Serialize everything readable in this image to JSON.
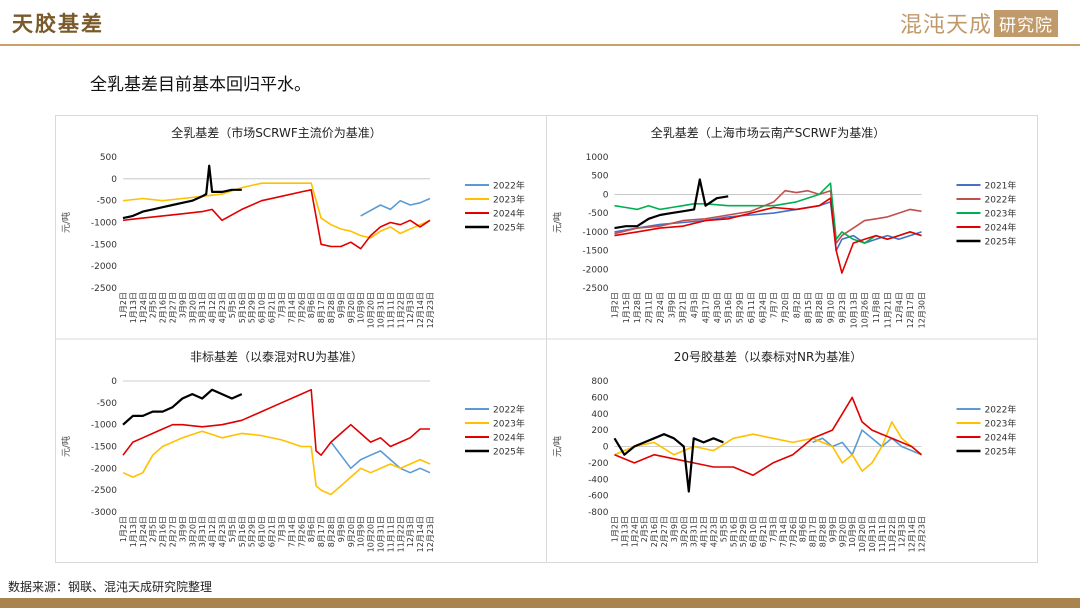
{
  "header": {
    "title": "天胶基差",
    "logo_text": "混沌天成",
    "logo_box": "研究院"
  },
  "subtitle": "全乳基差目前基本回归平水。",
  "source": "数据来源：钢联、混沌天成研究院整理",
  "colors": {
    "2021年": "#4472c4",
    "2022年": "#5b9bd5",
    "2023年": "#ffc000",
    "2024年": "#e00000",
    "2025年": "#000000",
    "p2_2022年": "#c0504d",
    "p2_2023年": "#00b050",
    "accent": "#c8a26a"
  },
  "chart_data": [
    {
      "type": "line",
      "title": "全乳基差（市场SCRWF主流价为基准）",
      "ylabel": "元/吨",
      "ylim": [
        -2500,
        500
      ],
      "yticks": [
        500,
        0,
        -500,
        -1000,
        -1500,
        -2000,
        -2500
      ],
      "xticks": [
        "1月2日",
        "1月13日",
        "1月24日",
        "2月5日",
        "2月16日",
        "2月27日",
        "3月9日",
        "3月20日",
        "3月31日",
        "4月12日",
        "4月23日",
        "5月5日",
        "5月16日",
        "5月29日",
        "6月10日",
        "6月21日",
        "7月3日",
        "7月14日",
        "7月26日",
        "8月6日",
        "8月17日",
        "8月28日",
        "9月9日",
        "9月20日",
        "10月9日",
        "10月20日",
        "10月31日",
        "11月11日",
        "11月22日",
        "12月3日",
        "12月14日",
        "12月23日"
      ],
      "series": [
        {
          "name": "2022年",
          "x": [
            24,
            26,
            27,
            28,
            29,
            30,
            31
          ],
          "y": [
            -850,
            -600,
            -700,
            -500,
            -600,
            -550,
            -450
          ]
        },
        {
          "name": "2023年",
          "x": [
            0,
            2,
            4,
            6,
            8,
            10,
            12,
            13,
            14,
            15,
            16,
            17,
            18,
            19,
            20,
            21,
            22,
            23,
            24,
            25,
            26,
            27,
            28,
            29,
            30,
            31
          ],
          "y": [
            -500,
            -450,
            -500,
            -450,
            -400,
            -350,
            -200,
            -150,
            -100,
            -100,
            -100,
            -100,
            -100,
            -100,
            -900,
            -1050,
            -1150,
            -1200,
            -1300,
            -1350,
            -1200,
            -1100,
            -1250,
            -1150,
            -1050,
            -950
          ]
        },
        {
          "name": "2024年",
          "x": [
            0,
            2,
            4,
            6,
            8,
            9,
            10,
            12,
            14,
            16,
            18,
            19,
            20,
            21,
            22,
            23,
            24,
            25,
            26,
            27,
            28,
            29,
            30,
            31
          ],
          "y": [
            -950,
            -900,
            -850,
            -800,
            -750,
            -700,
            -950,
            -700,
            -500,
            -400,
            -300,
            -250,
            -1500,
            -1550,
            -1550,
            -1450,
            -1600,
            -1300,
            -1100,
            -1000,
            -1050,
            -950,
            -1100,
            -950
          ]
        },
        {
          "name": "2025年",
          "x": [
            0,
            1,
            2,
            3,
            4,
            5,
            6,
            7,
            8,
            8.4,
            8.7,
            9,
            10,
            11,
            12
          ],
          "y": [
            -900,
            -850,
            -750,
            -700,
            -650,
            -600,
            -550,
            -500,
            -400,
            -350,
            300,
            -300,
            -300,
            -250,
            -250
          ]
        }
      ],
      "legend": "right"
    },
    {
      "type": "line",
      "title": "全乳基差（上海市场云南产SCRWF为基准）",
      "ylabel": "元/吨",
      "ylim": [
        -2500,
        1000
      ],
      "yticks": [
        1000,
        500,
        0,
        -500,
        -1000,
        -1500,
        -2000,
        -2500
      ],
      "xticks": [
        "1月2日",
        "1月15日",
        "1月28日",
        "2月11日",
        "2月24日",
        "3月9日",
        "3月21日",
        "4月3日",
        "4月17日",
        "4月30日",
        "5月16日",
        "5月29日",
        "6月11日",
        "6月24日",
        "7月7日",
        "7月20日",
        "8月2日",
        "8月15日",
        "8月28日",
        "9月10日",
        "9月23日",
        "10月13日",
        "10月26日",
        "11月8日",
        "11月21日",
        "12月4日",
        "12月17日",
        "12月30日"
      ],
      "series": [
        {
          "name": "2021年",
          "x": [
            0,
            2,
            4,
            6,
            8,
            10,
            12,
            14,
            16,
            18,
            19,
            19.5,
            20,
            21,
            22,
            23,
            24,
            25,
            26,
            27
          ],
          "y": [
            -1000,
            -900,
            -800,
            -750,
            -700,
            -600,
            -550,
            -500,
            -400,
            -300,
            -200,
            -1500,
            -1200,
            -1100,
            -1300,
            -1200,
            -1100,
            -1200,
            -1100,
            -1000
          ]
        },
        {
          "name": "2022年",
          "x": [
            0,
            2,
            4,
            6,
            8,
            10,
            12,
            14,
            15,
            16,
            17,
            18,
            19,
            19.5,
            20,
            21,
            22,
            23,
            24,
            25,
            26,
            27
          ],
          "y": [
            -1050,
            -900,
            -850,
            -700,
            -650,
            -550,
            -450,
            -200,
            100,
            50,
            100,
            0,
            100,
            -1300,
            -1100,
            -900,
            -700,
            -650,
            -600,
            -500,
            -400,
            -450
          ]
        },
        {
          "name": "2023年",
          "x": [
            0,
            1,
            2,
            3,
            4,
            5,
            6,
            7,
            8,
            10,
            12,
            14,
            16,
            18,
            19,
            19.5,
            20,
            21,
            22,
            23,
            24,
            25,
            26,
            27
          ],
          "y": [
            -300,
            -350,
            -400,
            -300,
            -400,
            -350,
            -300,
            -250,
            -250,
            -300,
            -300,
            -300,
            -200,
            0,
            300,
            -1200,
            -1000,
            -1200,
            -1300,
            -1100,
            -1200,
            -1100,
            -1000,
            -1100
          ]
        },
        {
          "name": "2024年",
          "x": [
            0,
            2,
            4,
            6,
            8,
            10,
            12,
            14,
            16,
            18,
            19,
            19.5,
            20,
            21,
            22,
            23,
            24,
            25,
            26,
            27
          ],
          "y": [
            -1100,
            -1000,
            -900,
            -850,
            -700,
            -650,
            -500,
            -350,
            -400,
            -300,
            -100,
            -1500,
            -2100,
            -1300,
            -1200,
            -1100,
            -1200,
            -1100,
            -1000,
            -1100
          ]
        },
        {
          "name": "2025年",
          "x": [
            0,
            1,
            2,
            3,
            4,
            5,
            6,
            7,
            7.5,
            8,
            9,
            10
          ],
          "y": [
            -900,
            -850,
            -850,
            -650,
            -550,
            -500,
            -450,
            -400,
            400,
            -300,
            -100,
            -50
          ]
        }
      ],
      "legend": "right"
    },
    {
      "type": "line",
      "title": "非标基差（以泰混对RU为基准）",
      "ylabel": "元/吨",
      "ylim": [
        -3000,
        0
      ],
      "yticks": [
        0,
        -500,
        -1000,
        -1500,
        -2000,
        -2500,
        -3000
      ],
      "xticks": [
        "1月2日",
        "1月13日",
        "1月24日",
        "2月5日",
        "2月16日",
        "2月27日",
        "3月9日",
        "3月20日",
        "3月31日",
        "4月12日",
        "4月23日",
        "5月5日",
        "5月16日",
        "5月29日",
        "6月10日",
        "6月21日",
        "7月3日",
        "7月14日",
        "7月26日",
        "8月6日",
        "8月17日",
        "8月28日",
        "9月9日",
        "9月20日",
        "10月9日",
        "10月20日",
        "10月31日",
        "11月11日",
        "11月22日",
        "12月3日",
        "12月14日",
        "12月23日"
      ],
      "series": [
        {
          "name": "2022年",
          "x": [
            21,
            22,
            23,
            24,
            25,
            26,
            27,
            28,
            29,
            30,
            31
          ],
          "y": [
            -1400,
            -1700,
            -2000,
            -1800,
            -1700,
            -1600,
            -1800,
            -2000,
            -2100,
            -2000,
            -2100
          ]
        },
        {
          "name": "2023年",
          "x": [
            0,
            1,
            2,
            3,
            4,
            6,
            8,
            10,
            12,
            14,
            16,
            18,
            19,
            19.5,
            20,
            21,
            22,
            23,
            24,
            25,
            26,
            27,
            28,
            29,
            30,
            31
          ],
          "y": [
            -2100,
            -2200,
            -2100,
            -1700,
            -1500,
            -1300,
            -1150,
            -1300,
            -1200,
            -1250,
            -1350,
            -1500,
            -1500,
            -2400,
            -2500,
            -2600,
            -2400,
            -2200,
            -2000,
            -2100,
            -2000,
            -1900,
            -2000,
            -1900,
            -1800,
            -1900
          ]
        },
        {
          "name": "2024年",
          "x": [
            0,
            1,
            2,
            3,
            4,
            5,
            6,
            8,
            10,
            12,
            14,
            16,
            18,
            19,
            19.5,
            20,
            21,
            22,
            23,
            24,
            25,
            26,
            27,
            28,
            29,
            30,
            31
          ],
          "y": [
            -1700,
            -1400,
            -1300,
            -1200,
            -1100,
            -1000,
            -1000,
            -1050,
            -1000,
            -900,
            -700,
            -500,
            -300,
            -200,
            -1600,
            -1700,
            -1400,
            -1200,
            -1000,
            -1200,
            -1400,
            -1300,
            -1500,
            -1400,
            -1300,
            -1100,
            -1100
          ]
        },
        {
          "name": "2025年",
          "x": [
            0,
            1,
            2,
            3,
            4,
            5,
            6,
            7,
            8,
            9,
            10,
            11,
            12
          ],
          "y": [
            -1000,
            -800,
            -800,
            -700,
            -700,
            -600,
            -400,
            -300,
            -400,
            -200,
            -300,
            -400,
            -300
          ]
        }
      ],
      "legend": "right"
    },
    {
      "type": "line",
      "title": "20号胶基差（以泰标对NR为基准）",
      "ylabel": "元/吨",
      "ylim": [
        -800,
        800
      ],
      "yticks": [
        800,
        600,
        400,
        200,
        0,
        -200,
        -400,
        -600,
        -800
      ],
      "xticks": [
        "1月2日",
        "1月13日",
        "1月24日",
        "2月5日",
        "2月16日",
        "2月27日",
        "3月9日",
        "3月20日",
        "3月31日",
        "4月12日",
        "4月23日",
        "5月5日",
        "5月16日",
        "5月29日",
        "6月10日",
        "6月21日",
        "7月3日",
        "7月14日",
        "7月26日",
        "8月6日",
        "8月17日",
        "8月28日",
        "9月9日",
        "9月20日",
        "10月9日",
        "10月20日",
        "10月31日",
        "11月11日",
        "11月22日",
        "12月3日",
        "12月14日",
        "12月23日"
      ],
      "series": [
        {
          "name": "2022年",
          "x": [
            20,
            21,
            22,
            23,
            24,
            25,
            26,
            27,
            28,
            29,
            30,
            31
          ],
          "y": [
            50,
            100,
            0,
            50,
            -100,
            200,
            100,
            0,
            100,
            0,
            -50,
            -100
          ]
        },
        {
          "name": "2023年",
          "x": [
            0,
            2,
            4,
            6,
            8,
            10,
            12,
            14,
            16,
            18,
            20,
            22,
            23,
            24,
            25,
            26,
            27,
            28,
            29,
            30,
            31
          ],
          "y": [
            -100,
            0,
            50,
            -100,
            0,
            -50,
            100,
            150,
            100,
            50,
            100,
            0,
            -200,
            -100,
            -300,
            -200,
            0,
            300,
            100,
            0,
            -100
          ]
        },
        {
          "name": "2024年",
          "x": [
            0,
            2,
            4,
            6,
            8,
            10,
            12,
            14,
            16,
            18,
            20,
            22,
            23,
            24,
            25,
            26,
            27,
            28,
            29,
            30,
            31
          ],
          "y": [
            -100,
            -200,
            -100,
            -150,
            -200,
            -250,
            -250,
            -350,
            -200,
            -100,
            100,
            200,
            400,
            600,
            300,
            200,
            150,
            100,
            50,
            0,
            -100
          ]
        },
        {
          "name": "2025年",
          "x": [
            0,
            1,
            2,
            3,
            4,
            5,
            6,
            7,
            7.5,
            8,
            9,
            10,
            11
          ],
          "y": [
            100,
            -100,
            0,
            50,
            100,
            150,
            100,
            0,
            -550,
            100,
            50,
            100,
            50
          ]
        }
      ],
      "legend": "right"
    }
  ]
}
